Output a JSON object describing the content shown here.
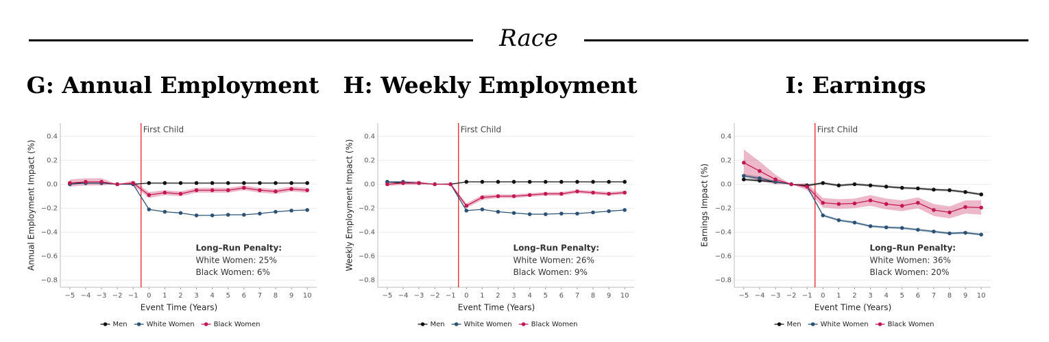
{
  "header": {
    "title": "Race"
  },
  "chart_data": [
    {
      "type": "line",
      "title": "G: Annual Employment",
      "xlabel": "Event Time (Years)",
      "ylabel": "Annual Employment Impact (%)",
      "x": [
        -5,
        -4,
        -3,
        -2,
        -1,
        0,
        1,
        2,
        3,
        4,
        5,
        6,
        7,
        8,
        9,
        10
      ],
      "xlim": [
        -5.6,
        10.6
      ],
      "ylim": [
        -0.86,
        0.51
      ],
      "xticks": [
        {
          "value": -5,
          "label": "−5"
        },
        {
          "value": -4,
          "label": "−4"
        },
        {
          "value": -3,
          "label": "−3"
        },
        {
          "value": -2,
          "label": "−2"
        },
        {
          "value": -1,
          "label": "−1"
        },
        0,
        1,
        2,
        3,
        4,
        5,
        6,
        7,
        8,
        9,
        10
      ],
      "yticks": [
        0.4,
        0.2,
        {
          "value": 0,
          "label": "0.0"
        },
        {
          "value": -0.2,
          "label": "−0.2"
        },
        {
          "value": -0.4,
          "label": "−0.4"
        },
        {
          "value": -0.6,
          "label": "−0.6"
        },
        {
          "value": -0.8,
          "label": "−0.8"
        }
      ],
      "grid": true,
      "event_x": -0.5,
      "event_label": "First Child",
      "annotation": {
        "title": "Long–Run Penalty:",
        "lines": [
          "White Women: 25%",
          "Black Women: 6%"
        ]
      },
      "series": [
        {
          "name": "Men",
          "color": "#111111",
          "values": [
            0.01,
            0.01,
            0.01,
            0,
            0.0,
            0.01,
            0.01,
            0.01,
            0.01,
            0.01,
            0.01,
            0.01,
            0.01,
            0.01,
            0.01,
            0.01
          ]
        },
        {
          "name": "White Women",
          "color": "#2b5275",
          "values": [
            0.0,
            0.01,
            0.01,
            0,
            0.0,
            -0.21,
            -0.23,
            -0.24,
            -0.26,
            -0.26,
            -0.255,
            -0.255,
            -0.245,
            -0.23,
            -0.22,
            -0.215
          ]
        },
        {
          "name": "Black Women",
          "color": "#c2174f",
          "values": [
            0.01,
            0.02,
            0.02,
            0,
            0.01,
            -0.09,
            -0.07,
            -0.08,
            -0.05,
            -0.05,
            -0.05,
            -0.03,
            -0.05,
            -0.06,
            -0.04,
            -0.05
          ],
          "ci": [
            0.03,
            0.03,
            0.03,
            0,
            0.02,
            0.025,
            0.02,
            0.02,
            0.02,
            0.02,
            0.02,
            0.02,
            0.02,
            0.02,
            0.02,
            0.02
          ]
        }
      ]
    },
    {
      "type": "line",
      "title": "H: Weekly Employment",
      "xlabel": "Event Time (Years)",
      "ylabel": "Weekly Employment Impact (%)",
      "x": [
        -5,
        -4,
        -3,
        -2,
        -1,
        0,
        1,
        2,
        3,
        4,
        5,
        6,
        7,
        8,
        9,
        10
      ],
      "xlim": [
        -5.6,
        10.6
      ],
      "ylim": [
        -0.86,
        0.51
      ],
      "xticks": [
        {
          "value": -5,
          "label": "−5"
        },
        {
          "value": -4,
          "label": "−4"
        },
        {
          "value": -3,
          "label": "−3"
        },
        {
          "value": -2,
          "label": "−2"
        },
        {
          "value": -1,
          "label": "−1"
        },
        0,
        1,
        2,
        3,
        4,
        5,
        6,
        7,
        8,
        9,
        10
      ],
      "yticks": [
        0.4,
        0.2,
        {
          "value": 0,
          "label": "0.0"
        },
        {
          "value": -0.2,
          "label": "−0.2"
        },
        {
          "value": -0.4,
          "label": "−0.4"
        },
        {
          "value": -0.6,
          "label": "−0.6"
        },
        {
          "value": -0.8,
          "label": "−0.8"
        }
      ],
      "grid": true,
      "event_x": -0.5,
      "event_label": "First Child",
      "annotation": {
        "title": "Long–Run Penalty:",
        "lines": [
          "White Women: 26%",
          "Black Women: 9%"
        ]
      },
      "series": [
        {
          "name": "Men",
          "color": "#111111",
          "values": [
            0.02,
            0.01,
            0.01,
            0,
            0.0,
            0.02,
            0.02,
            0.02,
            0.02,
            0.02,
            0.02,
            0.02,
            0.02,
            0.02,
            0.02,
            0.02
          ]
        },
        {
          "name": "White Women",
          "color": "#2b5275",
          "values": [
            0.02,
            0.02,
            0.01,
            0,
            0.0,
            -0.22,
            -0.21,
            -0.23,
            -0.24,
            -0.25,
            -0.25,
            -0.245,
            -0.245,
            -0.235,
            -0.225,
            -0.215
          ]
        },
        {
          "name": "Black Women",
          "color": "#c2174f",
          "values": [
            0.0,
            0.01,
            0.01,
            0,
            0.0,
            -0.18,
            -0.11,
            -0.1,
            -0.1,
            -0.09,
            -0.08,
            -0.08,
            -0.06,
            -0.07,
            -0.08,
            -0.07
          ],
          "ci": [
            0.015,
            0.015,
            0.015,
            0,
            0.01,
            0.02,
            0.02,
            0.015,
            0.015,
            0.015,
            0.015,
            0.015,
            0.015,
            0.015,
            0.015,
            0.015
          ]
        }
      ]
    },
    {
      "type": "line",
      "title": "I: Earnings",
      "xlabel": "Event Time (Years)",
      "ylabel": "Earnings Impact (%)",
      "x": [
        -5,
        -4,
        -3,
        -2,
        -1,
        0,
        1,
        2,
        3,
        4,
        5,
        6,
        7,
        8,
        9,
        10
      ],
      "xlim": [
        -5.6,
        10.6
      ],
      "ylim": [
        -0.86,
        0.51
      ],
      "xticks": [
        {
          "value": -5,
          "label": "−5"
        },
        {
          "value": -4,
          "label": "−4"
        },
        {
          "value": -3,
          "label": "−3"
        },
        {
          "value": -2,
          "label": "−2"
        },
        {
          "value": -1,
          "label": "−1"
        },
        0,
        1,
        2,
        3,
        4,
        5,
        6,
        7,
        8,
        9,
        10
      ],
      "yticks": [
        0.4,
        0.2,
        {
          "value": 0,
          "label": "0.0"
        },
        {
          "value": -0.2,
          "label": "−0.2"
        },
        {
          "value": -0.4,
          "label": "−0.4"
        },
        {
          "value": -0.6,
          "label": "−0.6"
        },
        {
          "value": -0.8,
          "label": "−0.8"
        }
      ],
      "grid": true,
      "event_x": -0.5,
      "event_label": "First Child",
      "annotation": {
        "title": "Long–Run Penalty:",
        "lines": [
          "White Women: 36%",
          "Black Women: 20%"
        ]
      },
      "series": [
        {
          "name": "Men",
          "color": "#111111",
          "values": [
            0.04,
            0.03,
            0.02,
            0,
            -0.01,
            0.01,
            -0.01,
            0.0,
            -0.01,
            -0.02,
            -0.03,
            -0.035,
            -0.045,
            -0.05,
            -0.065,
            -0.085
          ],
          "ci": [
            0.01,
            0.01,
            0.01,
            0,
            0.01,
            0.01,
            0.01,
            0.01,
            0.01,
            0.01,
            0.01,
            0.01,
            0.01,
            0.01,
            0.01,
            0.01
          ]
        },
        {
          "name": "White Women",
          "color": "#2b5275",
          "values": [
            0.07,
            0.05,
            0.02,
            0,
            -0.02,
            -0.26,
            -0.3,
            -0.32,
            -0.35,
            -0.36,
            -0.365,
            -0.38,
            -0.395,
            -0.41,
            -0.405,
            -0.42
          ],
          "ci": [
            0.015,
            0.015,
            0.01,
            0,
            0.01,
            0.01,
            0.01,
            0.01,
            0.01,
            0.01,
            0.01,
            0.01,
            0.01,
            0.01,
            0.01,
            0.01
          ]
        },
        {
          "name": "Black Women",
          "color": "#c2174f",
          "values": [
            0.18,
            0.11,
            0.04,
            0,
            -0.02,
            -0.155,
            -0.165,
            -0.16,
            -0.135,
            -0.165,
            -0.18,
            -0.155,
            -0.215,
            -0.235,
            -0.19,
            -0.195
          ],
          "ci": [
            0.11,
            0.08,
            0.04,
            0,
            0.03,
            0.04,
            0.04,
            0.04,
            0.045,
            0.045,
            0.045,
            0.045,
            0.05,
            0.05,
            0.055,
            0.06
          ]
        }
      ]
    }
  ]
}
